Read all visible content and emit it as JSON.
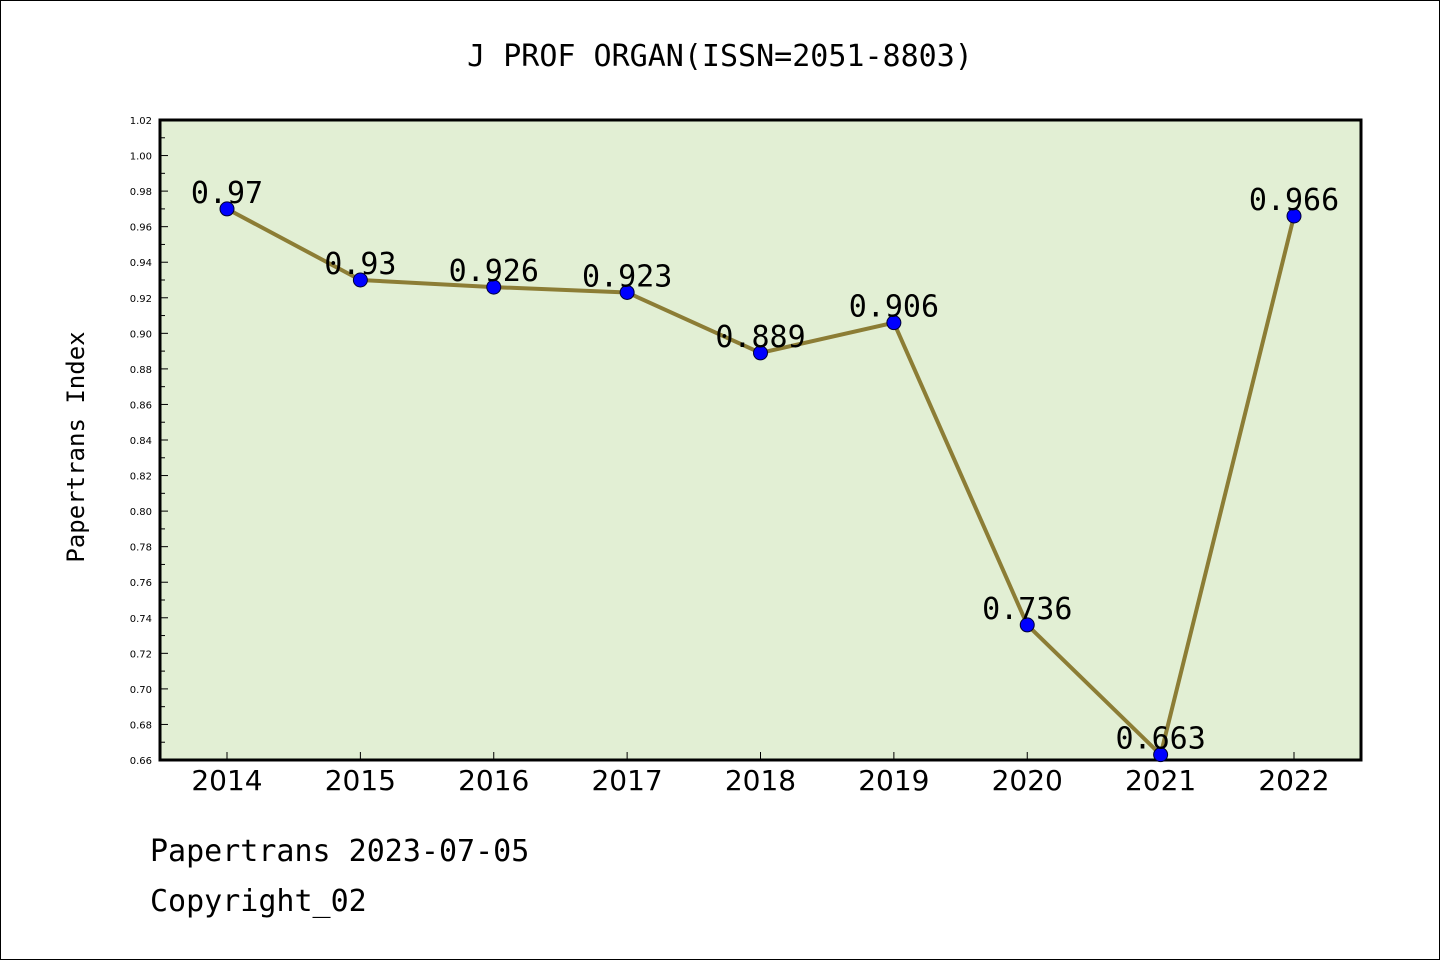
{
  "chart_data": {
    "type": "line",
    "title": "J PROF ORGAN(ISSN=2051-8803)",
    "xlabel": "",
    "ylabel": "Papertrans Index",
    "categories": [
      "2014",
      "2015",
      "2016",
      "2017",
      "2018",
      "2019",
      "2020",
      "2021",
      "2022"
    ],
    "series": [
      {
        "values": [
          0.97,
          0.93,
          0.926,
          0.923,
          0.889,
          0.906,
          0.736,
          0.663,
          0.966
        ],
        "data_labels": [
          "0.97",
          "0.93",
          "0.926",
          "0.923",
          "0.889",
          "0.906",
          "0.736",
          "0.663",
          "0.966"
        ]
      }
    ],
    "ylim": [
      0.66,
      1.02
    ],
    "yticks": [
      "0.66",
      "0.68",
      "0.70",
      "0.72",
      "0.74",
      "0.76",
      "0.78",
      "0.80",
      "0.82",
      "0.84",
      "0.86",
      "0.88",
      "0.90",
      "0.92",
      "0.94",
      "0.96",
      "0.98",
      "1.00",
      "1.02"
    ],
    "grid": false,
    "legend": "none",
    "colors": {
      "plot_background": "#e2efd4",
      "line": "#8c7d35",
      "marker": "#0000ff",
      "axis": "#000000"
    }
  },
  "footer": {
    "line1": "Papertrans 2023-07-05",
    "line2": "Copyright_02"
  }
}
